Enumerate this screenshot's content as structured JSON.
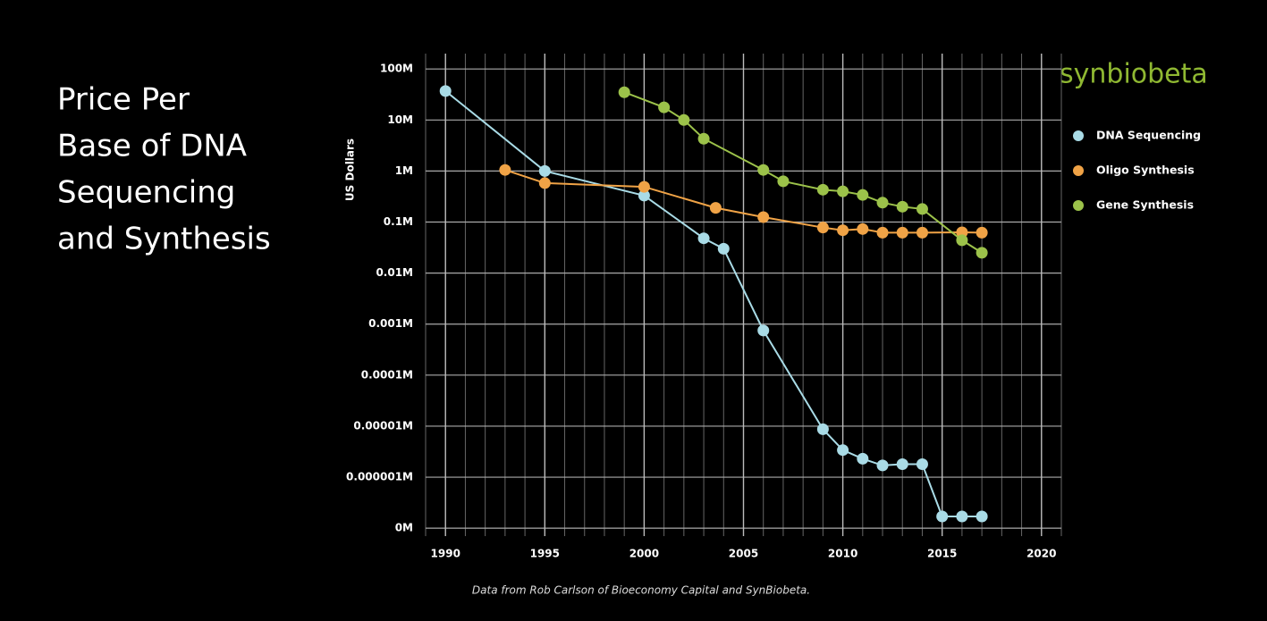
{
  "chart_data": {
    "type": "line",
    "title_lines": [
      "Price Per",
      "Base of DNA",
      "Sequencing",
      "and Synthesis"
    ],
    "logo": "synbiobeta",
    "ylabel": "US Dollars",
    "source": "Data from Rob Carlson of Bioeconomy Capital and SynBiobeta.",
    "log_y": true,
    "grid": true,
    "legend": "right",
    "xlim": [
      1989,
      2021
    ],
    "xticks": [
      1990,
      1995,
      2000,
      2005,
      2010,
      2015,
      2020
    ],
    "ylim": [
      7e-08,
      200
    ],
    "yticks": [
      {
        "value": 100,
        "label": "100M"
      },
      {
        "value": 10,
        "label": "10M"
      },
      {
        "value": 1,
        "label": "1M"
      },
      {
        "value": 0.1,
        "label": "0.1M"
      },
      {
        "value": 0.01,
        "label": "0.01M"
      },
      {
        "value": 0.001,
        "label": "0.001M"
      },
      {
        "value": 0.0001,
        "label": "0.0001M"
      },
      {
        "value": 1e-05,
        "label": "0.00001M"
      },
      {
        "value": 1e-06,
        "label": "0.000001M"
      },
      {
        "value": 1e-07,
        "label": "0M"
      }
    ],
    "series": [
      {
        "name": "DNA Sequencing",
        "color": "#a9dbe6",
        "x": [
          1990,
          1995,
          2000,
          2003,
          2004,
          2006,
          2009,
          2010,
          2011,
          2012,
          2013,
          2014,
          2015,
          2016,
          2017
        ],
        "values": [
          37,
          1.0,
          0.33,
          0.048,
          0.03,
          0.00075,
          8.7e-06,
          3.4e-06,
          2.3e-06,
          1.7e-06,
          1.8e-06,
          1.8e-06,
          1.7e-07,
          1.7e-07,
          1.7e-07
        ]
      },
      {
        "name": "Oligo Synthesis",
        "color": "#f0a346",
        "x": [
          1993,
          1995,
          2000,
          2003.6,
          2006,
          2009,
          2010,
          2011,
          2012,
          2013,
          2014,
          2016,
          2017
        ],
        "values": [
          1.05,
          0.58,
          0.49,
          0.19,
          0.125,
          0.078,
          0.069,
          0.073,
          0.062,
          0.062,
          0.062,
          0.063,
          0.062
        ]
      },
      {
        "name": "Gene Synthesis",
        "color": "#9cc24a",
        "x": [
          1999,
          2001,
          2002,
          2003,
          2006,
          2007,
          2009,
          2010,
          2011,
          2012,
          2013,
          2014,
          2016,
          2017
        ],
        "values": [
          35,
          17.7,
          10,
          4.3,
          1.05,
          0.63,
          0.43,
          0.4,
          0.34,
          0.24,
          0.2,
          0.18,
          0.044,
          0.025
        ]
      }
    ]
  }
}
